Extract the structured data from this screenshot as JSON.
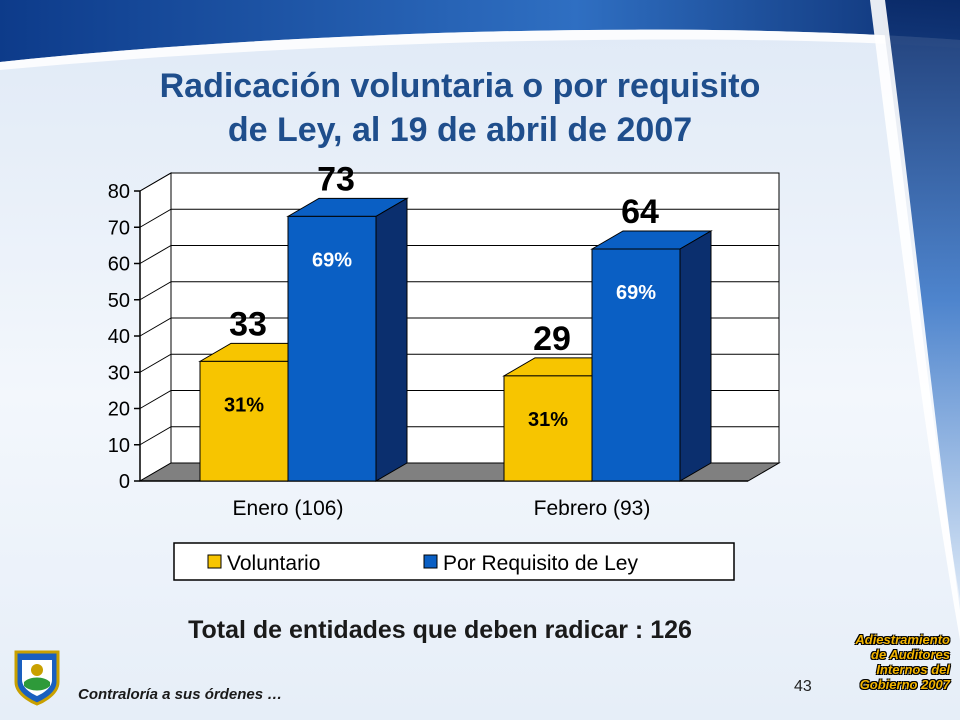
{
  "slide": {
    "title_line1": "Radicación voluntaria o por requisito",
    "title_line2": "de Ley, al 19 de abril de 2007",
    "total_text": "Total de entidades que deben radicar : 126",
    "footer_left": "Contraloría a sus órdenes …",
    "page_number": "43",
    "footer_right_lines": [
      "Adiestramiento",
      "de Auditores",
      "Internos del",
      "Gobierno 2007"
    ]
  },
  "chart_data": {
    "type": "bar",
    "categories": [
      "Enero (106)",
      "Febrero (93)"
    ],
    "series": [
      {
        "name": "Voluntario",
        "values": [
          33,
          29
        ],
        "percent_labels": [
          "31%",
          "31%"
        ],
        "color": "#f7c500"
      },
      {
        "name": "Por Requisito de Ley",
        "values": [
          73,
          64
        ],
        "percent_labels": [
          "69%",
          "69%"
        ],
        "color": "#0a5fc4"
      }
    ],
    "ylim": [
      0,
      80
    ],
    "yticks": [
      0,
      10,
      20,
      30,
      40,
      50,
      60,
      70,
      80
    ],
    "grid": true,
    "legend_position": "bottom"
  },
  "colors": {
    "title": "#1f4e8c",
    "voluntario_side": "#9c7c00",
    "requisito_side": "#0b2f6e",
    "floor": "#808080"
  }
}
